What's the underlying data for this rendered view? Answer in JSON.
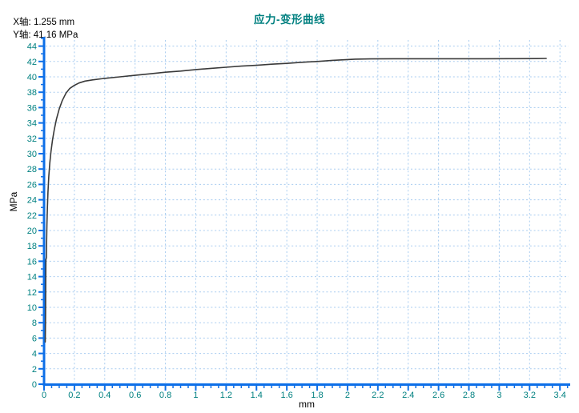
{
  "header": {
    "x_axis_readout": "X轴: 1.255 mm",
    "y_axis_readout": "Y轴: 41.16 MPa"
  },
  "title": "应力-变形曲线",
  "chart_data": {
    "type": "line",
    "title": "应力-变形曲线",
    "xlabel": "mm",
    "ylabel": "MPa",
    "xlim": [
      0,
      3.46
    ],
    "ylim": [
      0,
      44.8
    ],
    "grid": "dotted light-blue lines at every major tick",
    "legend": "none",
    "x_major_ticks": [
      0,
      0.2,
      0.4,
      0.6,
      0.8,
      1,
      1.2,
      1.4,
      1.6,
      1.8,
      2,
      2.2,
      2.4,
      2.6,
      2.8,
      3,
      3.2,
      3.4
    ],
    "x_tick_labels": [
      "0",
      "0.2",
      "0.4",
      "0.6",
      "0.8",
      "1",
      "1.2",
      "1.4",
      "1.6",
      "1.8",
      "2",
      "2.2",
      "2.4",
      "2.6",
      "2.8",
      "3",
      "3.2",
      "3.4"
    ],
    "x_minor_step": 0.05,
    "x_minor_max": 3.45,
    "y_major_ticks": [
      0,
      2,
      4,
      6,
      8,
      10,
      12,
      14,
      16,
      18,
      20,
      22,
      24,
      26,
      28,
      30,
      32,
      34,
      36,
      38,
      40,
      42,
      44
    ],
    "y_tick_labels": [
      "0",
      "2",
      "4",
      "6",
      "8",
      "10",
      "12",
      "14",
      "16",
      "18",
      "20",
      "22",
      "24",
      "26",
      "28",
      "30",
      "32",
      "34",
      "36",
      "38",
      "40",
      "42",
      "44"
    ],
    "y_minor_step": 1,
    "y_minor_max": 45,
    "series": [
      {
        "name": "应力-变形曲线",
        "points": [
          [
            0.008,
            5.5
          ],
          [
            0.01,
            9.0
          ],
          [
            0.011,
            13.0
          ],
          [
            0.012,
            16.2
          ],
          [
            0.016,
            16.5
          ],
          [
            0.017,
            18.5
          ],
          [
            0.019,
            20.8
          ],
          [
            0.022,
            23.0
          ],
          [
            0.026,
            25.0
          ],
          [
            0.031,
            27.0
          ],
          [
            0.038,
            28.8
          ],
          [
            0.046,
            30.3
          ],
          [
            0.056,
            31.8
          ],
          [
            0.068,
            33.2
          ],
          [
            0.082,
            34.5
          ],
          [
            0.1,
            35.8
          ],
          [
            0.12,
            36.9
          ],
          [
            0.145,
            37.9
          ],
          [
            0.17,
            38.5
          ],
          [
            0.2,
            38.9
          ],
          [
            0.23,
            39.2
          ],
          [
            0.27,
            39.45
          ],
          [
            0.32,
            39.6
          ],
          [
            0.4,
            39.8
          ],
          [
            0.5,
            40.0
          ],
          [
            0.6,
            40.2
          ],
          [
            0.7,
            40.4
          ],
          [
            0.8,
            40.6
          ],
          [
            0.9,
            40.75
          ],
          [
            1.0,
            40.95
          ],
          [
            1.1,
            41.1
          ],
          [
            1.2,
            41.25
          ],
          [
            1.3,
            41.4
          ],
          [
            1.4,
            41.5
          ],
          [
            1.5,
            41.65
          ],
          [
            1.6,
            41.75
          ],
          [
            1.7,
            41.9
          ],
          [
            1.8,
            42.0
          ],
          [
            1.9,
            42.15
          ],
          [
            2.0,
            42.25
          ],
          [
            2.05,
            42.3
          ],
          [
            2.15,
            42.33
          ],
          [
            2.3,
            42.35
          ],
          [
            2.5,
            42.35
          ],
          [
            2.7,
            42.35
          ],
          [
            2.9,
            42.35
          ],
          [
            3.1,
            42.36
          ],
          [
            3.25,
            42.38
          ],
          [
            3.31,
            42.4
          ]
        ]
      }
    ],
    "colors": {
      "axis": "#0d6fe8",
      "grid": "#a8ccf0",
      "tick_label": "#008080",
      "title": "#008080",
      "curve": "#3a3a3a",
      "axis_label": "#000000",
      "readout_text": "#000000",
      "background": "#ffffff"
    }
  }
}
